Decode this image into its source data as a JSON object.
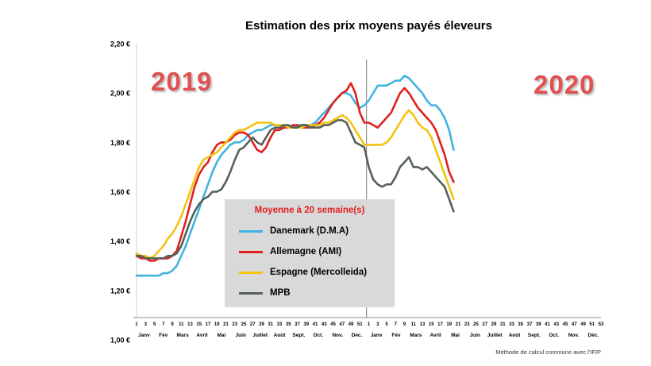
{
  "chart_data": {
    "type": "line",
    "title": "Estimation des prix moyens payés éleveurs",
    "year_labels": [
      "2019",
      "2020"
    ],
    "footnote": "Méthode de calcul commune avec l'IFIP",
    "ylim": [
      1.0,
      2.2
    ],
    "y_tick_values": [
      2.2,
      2.0,
      1.8,
      1.6,
      1.4,
      1.2,
      1.0
    ],
    "y_tick_labels": [
      "2,20 €",
      "2,00 €",
      "1,80 €",
      "1,60 €",
      "1,40 €",
      "1,20 €",
      "1,00 €"
    ],
    "x_ticks_2019": [
      1,
      3,
      5,
      7,
      9,
      11,
      13,
      15,
      17,
      19,
      21,
      23,
      25,
      27,
      29,
      31,
      33,
      35,
      37,
      39,
      41,
      43,
      45,
      47,
      49,
      51
    ],
    "x_ticks_2020": [
      1,
      3,
      5,
      7,
      9,
      11,
      13,
      15,
      17,
      19,
      21,
      23,
      25,
      27,
      29,
      31,
      33,
      35,
      37,
      39,
      41,
      43,
      45,
      47,
      49,
      51,
      53
    ],
    "months": [
      "Janv",
      "Fév",
      "Mars",
      "Avril",
      "Mai",
      "Juin",
      "Juillet",
      "Août",
      "Sept.",
      "Oct.",
      "Nov.",
      "Déc."
    ],
    "legend": {
      "title": "Moyenne à  20 semaine(s)"
    },
    "grid": "off",
    "separator_between_years": true,
    "series": [
      {
        "name": "Danemark (D.M.A)",
        "color": "#41b3e1",
        "values_2019": [
          1.26,
          1.26,
          1.26,
          1.26,
          1.26,
          1.26,
          1.27,
          1.27,
          1.28,
          1.3,
          1.34,
          1.38,
          1.43,
          1.48,
          1.53,
          1.58,
          1.63,
          1.68,
          1.72,
          1.75,
          1.77,
          1.79,
          1.8,
          1.8,
          1.81,
          1.83,
          1.84,
          1.85,
          1.85,
          1.86,
          1.87,
          1.87,
          1.87,
          1.87,
          1.86,
          1.86,
          1.87,
          1.87,
          1.87,
          1.87,
          1.88,
          1.9,
          1.92,
          1.94,
          1.96,
          1.98,
          2.0,
          2.0,
          1.99,
          1.96,
          1.94,
          1.95
        ],
        "values_2020": [
          1.97,
          2.0,
          2.03,
          2.03,
          2.03,
          2.04,
          2.05,
          2.05,
          2.07,
          2.06,
          2.04,
          2.02,
          2.0,
          1.97,
          1.95,
          1.95,
          1.93,
          1.9,
          1.85,
          1.77
        ]
      },
      {
        "name": "Allemagne (AMI)",
        "color": "#e0201e",
        "values_2019": [
          1.34,
          1.33,
          1.33,
          1.32,
          1.32,
          1.33,
          1.33,
          1.33,
          1.34,
          1.36,
          1.42,
          1.48,
          1.55,
          1.62,
          1.67,
          1.7,
          1.72,
          1.76,
          1.79,
          1.8,
          1.8,
          1.81,
          1.83,
          1.84,
          1.84,
          1.83,
          1.8,
          1.77,
          1.76,
          1.78,
          1.82,
          1.85,
          1.85,
          1.86,
          1.86,
          1.87,
          1.87,
          1.86,
          1.86,
          1.86,
          1.87,
          1.88,
          1.9,
          1.93,
          1.96,
          1.98,
          2.0,
          2.01,
          2.04,
          2.0,
          1.92,
          1.88
        ],
        "values_2020": [
          1.88,
          1.87,
          1.86,
          1.88,
          1.9,
          1.92,
          1.96,
          2.0,
          2.02,
          2.0,
          1.97,
          1.94,
          1.92,
          1.9,
          1.88,
          1.85,
          1.8,
          1.75,
          1.68,
          1.64
        ]
      },
      {
        "name": "Espagne (Mercolleida)",
        "color": "#f2c311",
        "values_2019": [
          1.35,
          1.34,
          1.34,
          1.33,
          1.34,
          1.36,
          1.38,
          1.41,
          1.43,
          1.46,
          1.5,
          1.55,
          1.6,
          1.65,
          1.7,
          1.73,
          1.74,
          1.75,
          1.76,
          1.78,
          1.8,
          1.82,
          1.84,
          1.85,
          1.85,
          1.86,
          1.87,
          1.88,
          1.88,
          1.88,
          1.88,
          1.87,
          1.87,
          1.87,
          1.86,
          1.86,
          1.86,
          1.86,
          1.87,
          1.87,
          1.87,
          1.87,
          1.88,
          1.88,
          1.89,
          1.9,
          1.91,
          1.9,
          1.88,
          1.85,
          1.82,
          1.79
        ],
        "values_2020": [
          1.79,
          1.79,
          1.79,
          1.79,
          1.8,
          1.82,
          1.85,
          1.88,
          1.91,
          1.93,
          1.91,
          1.88,
          1.86,
          1.85,
          1.82,
          1.77,
          1.72,
          1.67,
          1.62,
          1.57
        ]
      },
      {
        "name": "MPB",
        "color": "#546158",
        "values_2019": [
          1.34,
          1.34,
          1.33,
          1.33,
          1.33,
          1.33,
          1.33,
          1.34,
          1.34,
          1.35,
          1.38,
          1.43,
          1.48,
          1.52,
          1.55,
          1.57,
          1.58,
          1.6,
          1.6,
          1.61,
          1.64,
          1.68,
          1.73,
          1.77,
          1.78,
          1.8,
          1.82,
          1.8,
          1.79,
          1.82,
          1.85,
          1.86,
          1.86,
          1.87,
          1.87,
          1.86,
          1.86,
          1.87,
          1.87,
          1.86,
          1.86,
          1.86,
          1.87,
          1.87,
          1.88,
          1.89,
          1.89,
          1.88,
          1.84,
          1.8,
          1.79,
          1.78
        ],
        "values_2020": [
          1.7,
          1.65,
          1.63,
          1.62,
          1.63,
          1.63,
          1.66,
          1.7,
          1.72,
          1.74,
          1.7,
          1.7,
          1.69,
          1.7,
          1.68,
          1.66,
          1.64,
          1.62,
          1.57,
          1.52
        ]
      }
    ]
  }
}
